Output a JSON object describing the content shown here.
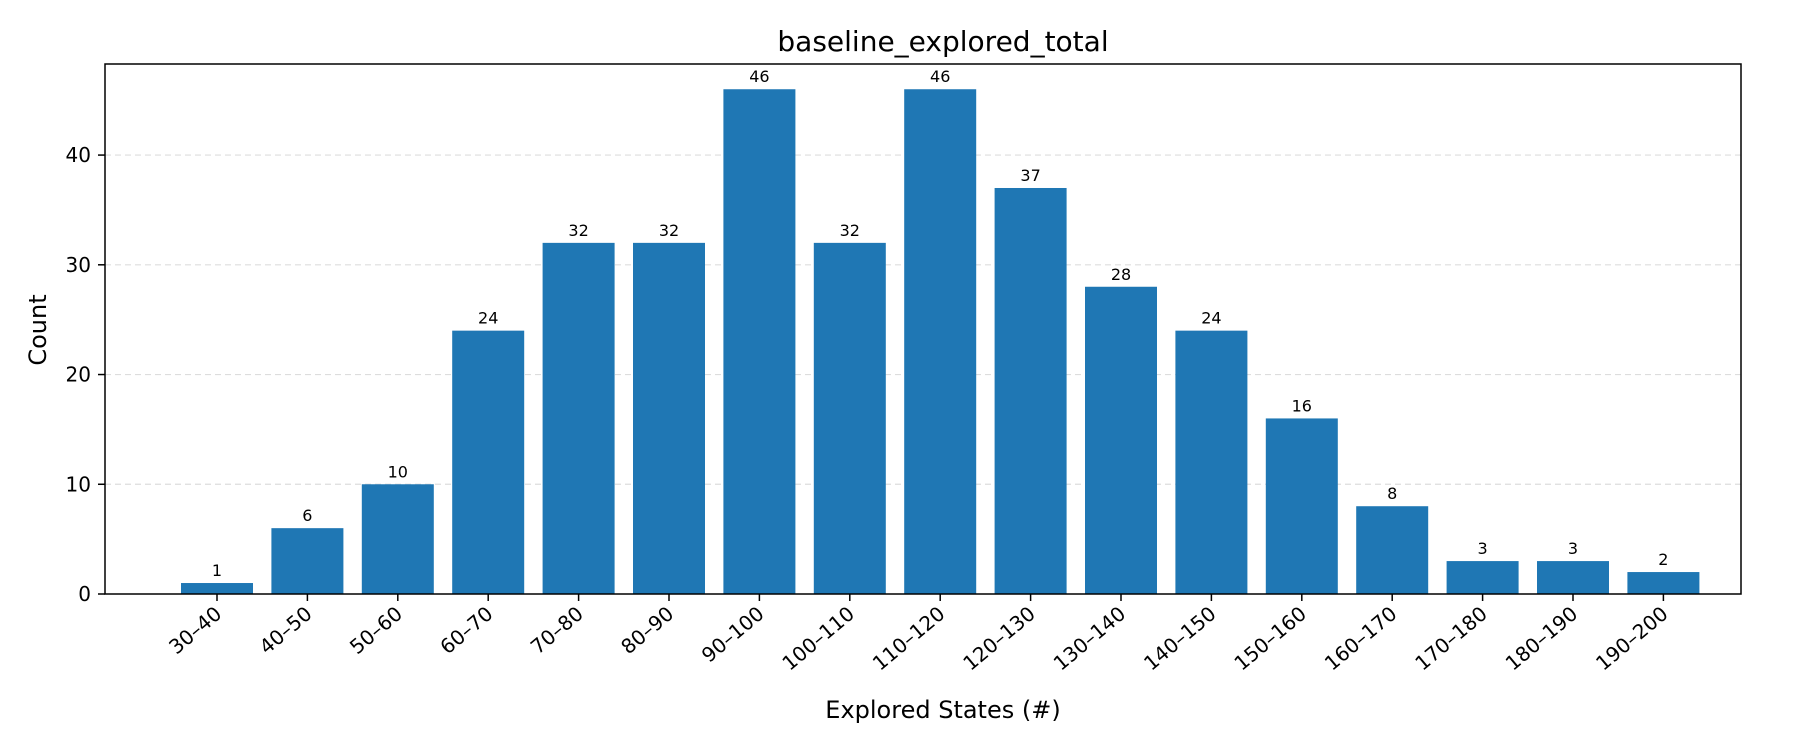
{
  "chart_data": {
    "type": "bar",
    "title": "baseline_explored_total",
    "xlabel": "Explored States (#)",
    "ylabel": "Count",
    "categories": [
      "30–40",
      "40–50",
      "50–60",
      "60–70",
      "70–80",
      "80–90",
      "90–100",
      "100–110",
      "110–120",
      "120–130",
      "130–140",
      "140–150",
      "150–160",
      "160–170",
      "170–180",
      "180–190",
      "190–200"
    ],
    "values": [
      1,
      6,
      10,
      24,
      32,
      32,
      46,
      32,
      46,
      37,
      28,
      24,
      16,
      8,
      3,
      3,
      2
    ],
    "ylim": [
      0,
      48.3
    ],
    "yticks": [
      0,
      10,
      20,
      30,
      40
    ],
    "grid": "horizontal dashed",
    "bar_color": "#1f77b4",
    "grid_color": "#dddddd",
    "data_labels": true
  }
}
